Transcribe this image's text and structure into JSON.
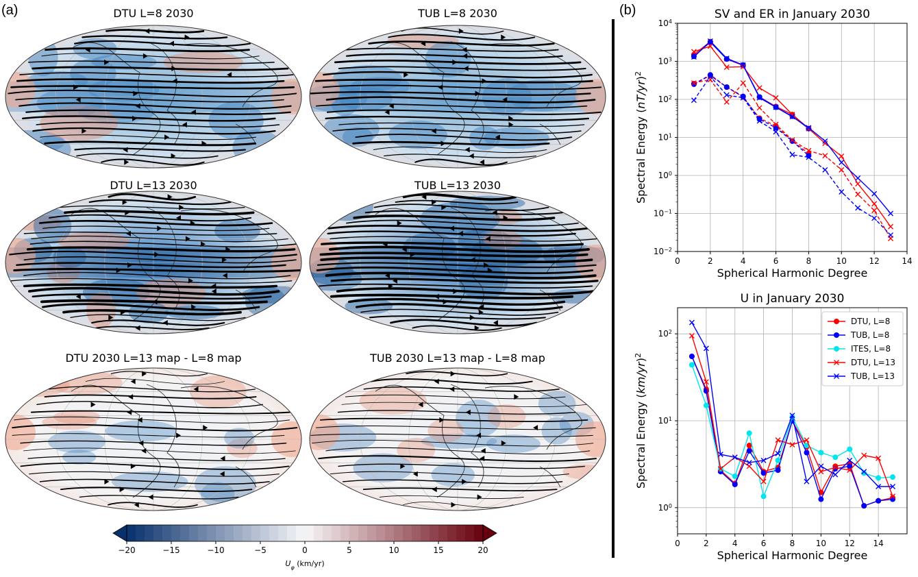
{
  "panel_labels": {
    "a": "(a)",
    "b": "(b)"
  },
  "maps": [
    {
      "title": "DTU L=8 2030"
    },
    {
      "title": "TUB L=8 2030"
    },
    {
      "title": "DTU L=13 2030"
    },
    {
      "title": "TUB L=13 2030"
    },
    {
      "title": "DTU 2030 L=13 map - L=8 map"
    },
    {
      "title": "TUB 2030 L=13 map - L=8 map"
    }
  ],
  "colorbar": {
    "label": "U_φ (km/yr)",
    "label_main": "U",
    "label_sub": "φ",
    "label_unit": " (km/yr)",
    "min": -20,
    "max": 20,
    "ticks": [
      -20,
      -15,
      -10,
      -5,
      0,
      5,
      10,
      15,
      20
    ],
    "tick_labels": [
      "−20",
      "−15",
      "−10",
      "−5",
      "0",
      "5",
      "10",
      "15",
      "20"
    ],
    "colors": {
      "neg": "#08306b",
      "mid": "#f7f7f7",
      "pos": "#67000d"
    }
  },
  "chart_data": [
    {
      "type": "line",
      "title": "SV and ER in January 2030",
      "xlabel": "Spherical Harmonic Degree",
      "ylabel_pre": "Spectral Energy (",
      "ylabel_ital": "nT/yr",
      "ylabel_post": ")",
      "ylabel_sup": "2",
      "xlim": [
        0,
        14
      ],
      "ylim": [
        0.01,
        10000
      ],
      "yscale": "log",
      "grid": true,
      "xticks": [
        0,
        2,
        4,
        6,
        8,
        10,
        12,
        14
      ],
      "xtick_labels": [
        "0",
        "2",
        "4",
        "6",
        "8",
        "10",
        "12",
        "14"
      ],
      "yticks": [
        0.01,
        0.1,
        1,
        10,
        100,
        1000,
        10000
      ],
      "ytick_base": "10",
      "ytick_exps": [
        "−2",
        "−1",
        "0",
        "1",
        "2",
        "3",
        "4"
      ],
      "series": [
        {
          "color": "#ff0000",
          "style": "solid",
          "marker": "o",
          "x": [
            1,
            2,
            3,
            4,
            5,
            6,
            7,
            8
          ],
          "y": [
            1500,
            3300,
            1150,
            780,
            115,
            65,
            40,
            17
          ]
        },
        {
          "color": "#0000ff",
          "style": "solid",
          "marker": "o",
          "x": [
            1,
            2,
            3,
            4,
            5,
            6,
            7,
            8
          ],
          "y": [
            1350,
            3200,
            1150,
            800,
            115,
            62,
            36,
            17
          ]
        },
        {
          "color": "#ff0000",
          "style": "solid",
          "marker": "x",
          "x": [
            1,
            2,
            3,
            4,
            5,
            6,
            7,
            8,
            9,
            10,
            11,
            12,
            13
          ],
          "y": [
            1800,
            2500,
            700,
            720,
            200,
            110,
            40,
            17,
            7,
            3.2,
            0.6,
            0.18,
            0.045
          ]
        },
        {
          "color": "#0000ff",
          "style": "solid",
          "marker": "x",
          "x": [
            1,
            2,
            3,
            4,
            5,
            6,
            7,
            8,
            9,
            10,
            11,
            12,
            13
          ],
          "y": [
            1300,
            3400,
            1200,
            800,
            110,
            62,
            35,
            18,
            8,
            2.2,
            0.85,
            0.33,
            0.1
          ]
        },
        {
          "color": "#ff0000",
          "style": "dashed",
          "marker": "o",
          "x": [
            1,
            2,
            3,
            4,
            5,
            6,
            7,
            8
          ],
          "y": [
            260,
            420,
            210,
            115,
            32,
            20,
            8,
            3.8
          ]
        },
        {
          "color": "#0000ff",
          "style": "dashed",
          "marker": "o",
          "x": [
            1,
            2,
            3,
            4,
            5,
            6,
            7,
            8
          ],
          "y": [
            250,
            440,
            210,
            120,
            30,
            18,
            8,
            3.3
          ]
        },
        {
          "color": "#ff0000",
          "style": "dashed",
          "marker": "x",
          "x": [
            1,
            2,
            3,
            4,
            5,
            6,
            7,
            8,
            9,
            10,
            11,
            12,
            13
          ],
          "y": [
            270,
            330,
            85,
            270,
            60,
            22,
            8.5,
            4.5,
            3.3,
            1.4,
            0.32,
            0.12,
            0.022
          ]
        },
        {
          "color": "#0000ff",
          "style": "dashed",
          "marker": "x",
          "x": [
            1,
            2,
            3,
            4,
            5,
            6,
            7,
            8,
            9,
            10,
            11,
            12,
            13
          ],
          "y": [
            95,
            400,
            130,
            110,
            27,
            14,
            3.5,
            3,
            1.4,
            0.37,
            0.14,
            0.075,
            0.027
          ]
        }
      ]
    },
    {
      "type": "line",
      "title": "U in January 2030",
      "xlabel": "Spherical Harmonic Degree",
      "ylabel_pre": "Spectral Energy (",
      "ylabel_ital": "km/yr",
      "ylabel_post": ")",
      "ylabel_sup": "2",
      "xlim": [
        0,
        16
      ],
      "ylim": [
        0.5,
        200
      ],
      "yscale": "log",
      "grid": true,
      "legend": "top-right",
      "xticks": [
        0,
        2,
        4,
        6,
        8,
        10,
        12,
        14
      ],
      "xtick_labels": [
        "0",
        "2",
        "4",
        "6",
        "8",
        "10",
        "12",
        "14"
      ],
      "yticks": [
        1,
        10,
        100
      ],
      "ytick_base": "10",
      "ytick_exps": [
        "0",
        "1",
        "2"
      ],
      "series": [
        {
          "name": "DTU, L=8",
          "color": "#ff0000",
          "marker": "o",
          "x": [
            1,
            2,
            3,
            4,
            5,
            6,
            7,
            8,
            9,
            10,
            11,
            12,
            13,
            14,
            15
          ],
          "y": [
            55,
            23,
            2.7,
            1.9,
            5.2,
            2.6,
            2.9,
            10,
            5,
            1.5,
            3,
            3.2,
            1.05,
            1.2,
            1.3
          ]
        },
        {
          "name": "TUB, L=8",
          "color": "#0000ff",
          "marker": "o",
          "x": [
            1,
            2,
            3,
            4,
            5,
            6,
            7,
            8,
            9,
            10,
            11,
            12,
            13,
            14,
            15
          ],
          "y": [
            55,
            22,
            2.6,
            1.85,
            4.5,
            2.5,
            2.7,
            10,
            4.3,
            1.25,
            2.8,
            3,
            1.05,
            1.2,
            1.25
          ]
        },
        {
          "name": "ITES, L=8",
          "color": "#00e5ee",
          "marker": "o",
          "x": [
            1,
            2,
            3,
            4,
            5,
            6,
            7,
            8,
            9,
            10,
            11,
            12,
            13,
            14,
            15
          ],
          "y": [
            44,
            15,
            2.8,
            2.3,
            7.2,
            1.35,
            3.5,
            11,
            5.2,
            4.3,
            3.8,
            4.7,
            2.5,
            2.2,
            2.25
          ]
        },
        {
          "name": "DTU, L=13",
          "color": "#ff0000",
          "marker": "x",
          "x": [
            1,
            2,
            3,
            4,
            5,
            6,
            7,
            8,
            9,
            10,
            11,
            12,
            13,
            14,
            15
          ],
          "y": [
            95,
            28,
            2.8,
            3.8,
            3,
            2,
            6,
            5.3,
            6,
            2.6,
            2.9,
            2.7,
            4,
            3.7,
            1.35
          ]
        },
        {
          "name": "TUB, L=13",
          "color": "#0000ff",
          "marker": "x",
          "x": [
            1,
            2,
            3,
            4,
            5,
            6,
            7,
            8,
            9,
            10,
            11,
            12,
            13,
            14,
            15
          ],
          "y": [
            135,
            68,
            4.1,
            3.8,
            3.3,
            3.5,
            4.2,
            11.5,
            2,
            3,
            2.4,
            3.5,
            2.6,
            1.75,
            1.75
          ]
        }
      ]
    }
  ]
}
